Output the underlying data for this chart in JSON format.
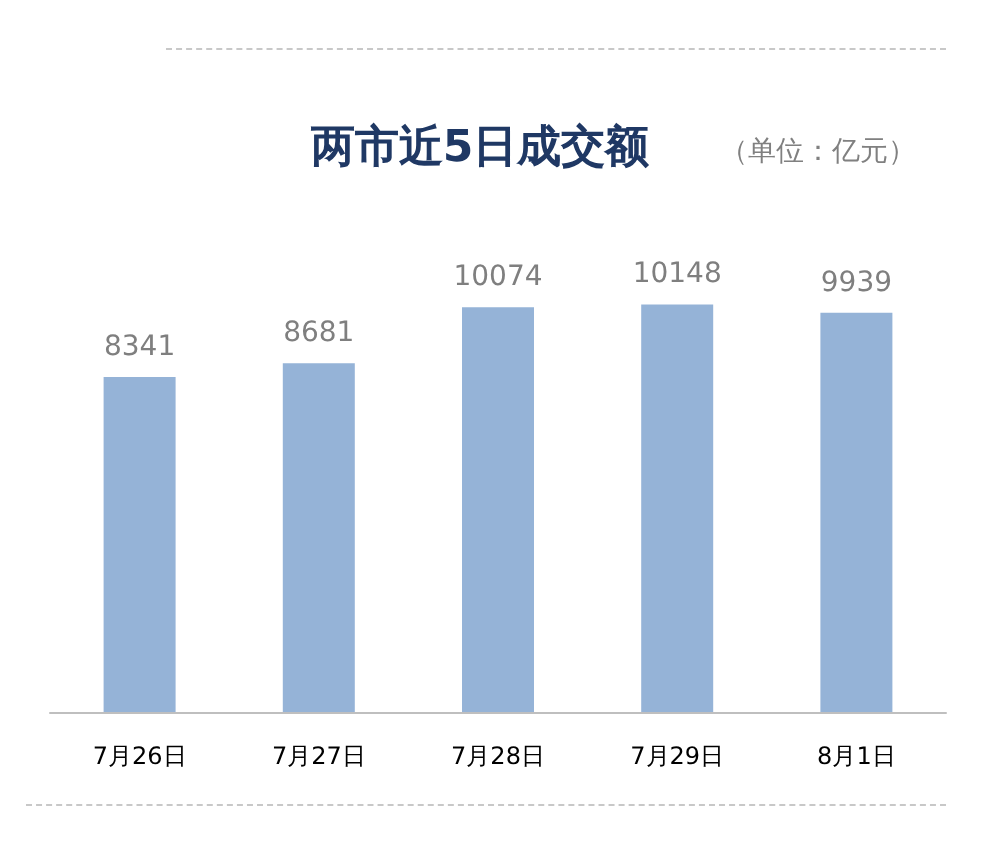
{
  "chart_data": {
    "type": "bar",
    "title": "两市近5日成交额",
    "subtitle": "（单位：亿元）",
    "categories": [
      "7月26日",
      "7月27日",
      "7月28日",
      "7月29日",
      "8月1日"
    ],
    "values": [
      8341,
      8681,
      10074,
      10148,
      9939
    ],
    "color": "#95b3d7",
    "data_labels": true
  }
}
